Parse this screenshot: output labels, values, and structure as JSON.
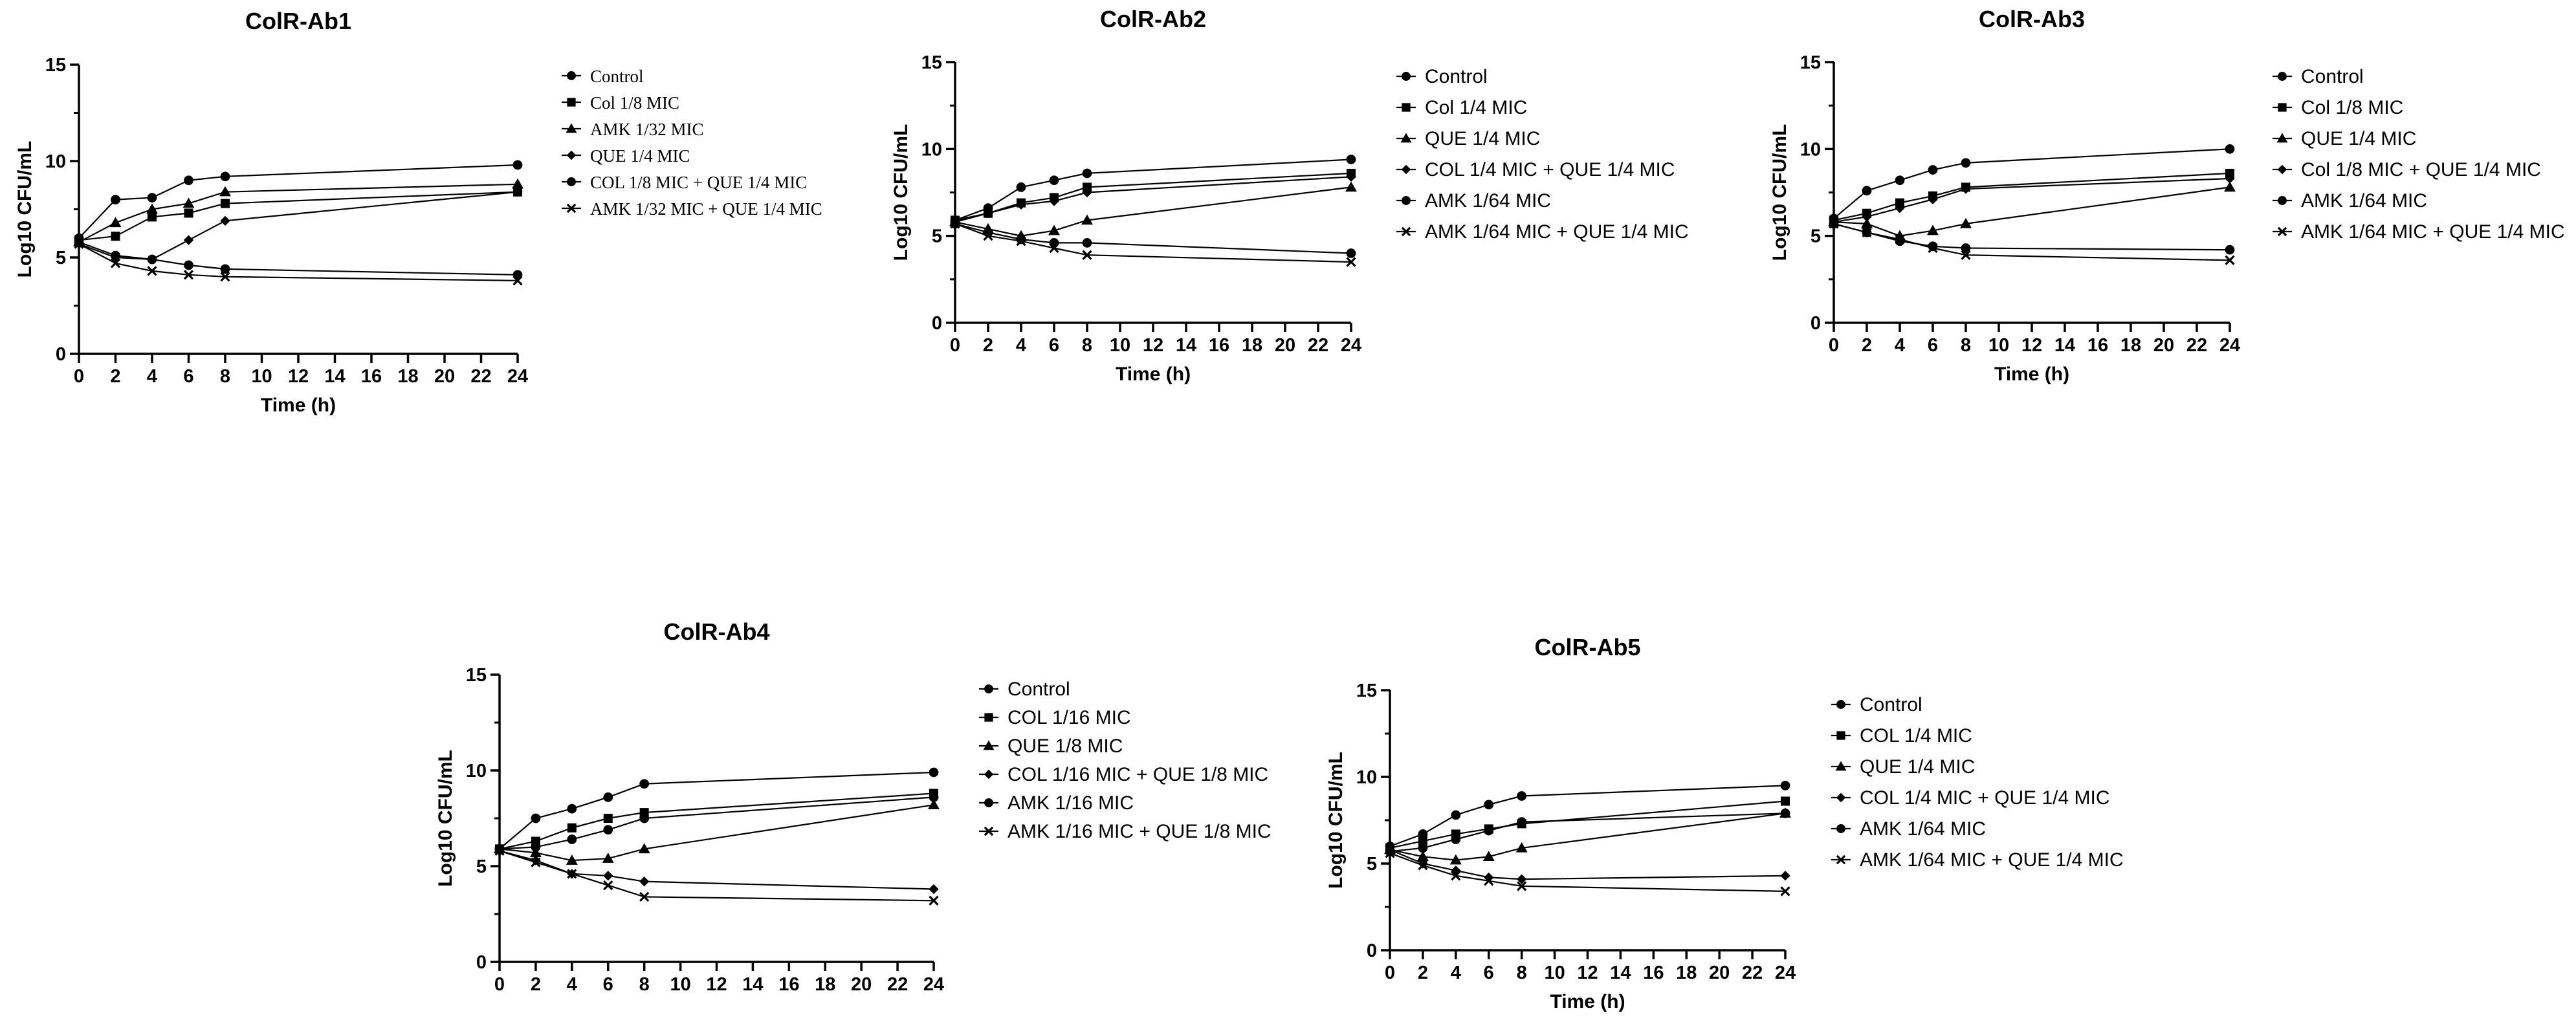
{
  "chart_data": [
    {
      "type": "line",
      "title": "ColR-Ab1",
      "xlabel": "Time (h)",
      "ylabel": "Log10 CFU/mL",
      "xlim": [
        0,
        24
      ],
      "ylim": [
        0,
        15
      ],
      "xticks": [
        "0",
        "2",
        "4",
        "6",
        "8",
        "10",
        "12",
        "14",
        "16",
        "18",
        "20",
        "22",
        "24"
      ],
      "yticks": [
        "0",
        "5",
        "10",
        "15"
      ],
      "x": [
        0,
        2,
        4,
        6,
        8,
        24
      ],
      "legend_position": "right",
      "series": [
        {
          "name": "Control",
          "marker": "circle",
          "values": [
            6.0,
            8.0,
            8.1,
            9.0,
            9.2,
            9.8
          ]
        },
        {
          "name": "Col 1/8 MIC",
          "marker": "square",
          "values": [
            5.9,
            6.1,
            7.1,
            7.3,
            7.8,
            8.4
          ]
        },
        {
          "name": "AMK 1/32 MIC",
          "marker": "triangle",
          "values": [
            5.8,
            6.8,
            7.5,
            7.8,
            8.4,
            8.8
          ]
        },
        {
          "name": "QUE 1/4 MIC",
          "marker": "diamond",
          "values": [
            5.7,
            5.0,
            4.9,
            5.9,
            6.9,
            8.4
          ]
        },
        {
          "name": "COL 1/8 MIC + QUE 1/4 MIC",
          "marker": "circle",
          "values": [
            5.8,
            5.1,
            4.9,
            4.6,
            4.4,
            4.1
          ]
        },
        {
          "name": "AMK 1/32 MIC + QUE 1/4 MIC",
          "marker": "cross",
          "values": [
            5.7,
            4.7,
            4.3,
            4.1,
            4.0,
            3.8
          ]
        }
      ]
    },
    {
      "type": "line",
      "title": "ColR-Ab2",
      "xlabel": "Time (h)",
      "ylabel": "Log10 CFU/mL",
      "xlim": [
        0,
        24
      ],
      "ylim": [
        0,
        15
      ],
      "xticks": [
        "0",
        "2",
        "4",
        "6",
        "8",
        "10",
        "12",
        "14",
        "16",
        "18",
        "20",
        "22",
        "24"
      ],
      "yticks": [
        "0",
        "5",
        "10",
        "15"
      ],
      "x": [
        0,
        2,
        4,
        6,
        8,
        24
      ],
      "legend_position": "right",
      "series": [
        {
          "name": "Control",
          "marker": "circle",
          "values": [
            5.9,
            6.6,
            7.8,
            8.2,
            8.6,
            9.4
          ]
        },
        {
          "name": "Col 1/4 MIC",
          "marker": "square",
          "values": [
            5.9,
            6.3,
            6.9,
            7.2,
            7.8,
            8.6
          ]
        },
        {
          "name": "QUE 1/4 MIC",
          "marker": "triangle",
          "values": [
            5.8,
            5.4,
            5.0,
            5.3,
            5.9,
            7.8
          ]
        },
        {
          "name": "COL 1/4 MIC + QUE 1/4 MIC",
          "marker": "diamond",
          "values": [
            5.8,
            6.3,
            6.8,
            7.0,
            7.5,
            8.4
          ]
        },
        {
          "name": "AMK 1/64 MIC",
          "marker": "circle",
          "values": [
            5.7,
            5.2,
            4.8,
            4.6,
            4.6,
            4.0
          ]
        },
        {
          "name": "AMK 1/64 MIC + QUE 1/4 MIC",
          "marker": "cross",
          "values": [
            5.7,
            5.0,
            4.7,
            4.3,
            3.9,
            3.5
          ]
        }
      ]
    },
    {
      "type": "line",
      "title": "ColR-Ab3",
      "xlabel": "Time (h)",
      "ylabel": "Log10 CFU/mL",
      "xlim": [
        0,
        24
      ],
      "ylim": [
        0,
        15
      ],
      "xticks": [
        "0",
        "2",
        "4",
        "6",
        "8",
        "10",
        "12",
        "14",
        "16",
        "18",
        "20",
        "22",
        "24"
      ],
      "yticks": [
        "0",
        "5",
        "10",
        "15"
      ],
      "x": [
        0,
        2,
        4,
        6,
        8,
        24
      ],
      "legend_position": "right",
      "series": [
        {
          "name": "Control",
          "marker": "circle",
          "values": [
            6.0,
            7.6,
            8.2,
            8.8,
            9.2,
            10.0
          ]
        },
        {
          "name": "Col 1/8 MIC",
          "marker": "square",
          "values": [
            5.9,
            6.3,
            6.9,
            7.3,
            7.8,
            8.6
          ]
        },
        {
          "name": "QUE 1/4 MIC",
          "marker": "triangle",
          "values": [
            5.8,
            5.7,
            5.0,
            5.3,
            5.7,
            7.8
          ]
        },
        {
          "name": "Col 1/8 MIC + QUE 1/4 MIC",
          "marker": "diamond",
          "values": [
            5.8,
            6.1,
            6.6,
            7.1,
            7.7,
            8.3
          ]
        },
        {
          "name": "AMK 1/64 MIC",
          "marker": "circle",
          "values": [
            5.7,
            5.2,
            4.7,
            4.4,
            4.3,
            4.2
          ]
        },
        {
          "name": "AMK 1/64 MIC + QUE 1/4 MIC",
          "marker": "cross",
          "values": [
            5.7,
            5.2,
            4.8,
            4.3,
            3.9,
            3.6
          ]
        }
      ]
    },
    {
      "type": "line",
      "title": "ColR-Ab4",
      "xlabel": "",
      "ylabel": "Log10 CFU/mL",
      "xlim": [
        0,
        24
      ],
      "ylim": [
        0,
        15
      ],
      "xticks": [
        "0",
        "2",
        "4",
        "6",
        "8",
        "10",
        "12",
        "14",
        "16",
        "18",
        "20",
        "22",
        "24"
      ],
      "yticks": [
        "0",
        "5",
        "10",
        "15"
      ],
      "x": [
        0,
        2,
        4,
        6,
        8,
        24
      ],
      "legend_position": "right",
      "series": [
        {
          "name": "Control",
          "marker": "circle",
          "values": [
            5.9,
            7.5,
            8.0,
            8.6,
            9.3,
            9.9
          ]
        },
        {
          "name": "COL 1/16 MIC",
          "marker": "square",
          "values": [
            5.9,
            6.3,
            7.0,
            7.5,
            7.8,
            8.8
          ]
        },
        {
          "name": "QUE 1/8 MIC",
          "marker": "triangle",
          "values": [
            5.9,
            5.7,
            5.3,
            5.4,
            5.9,
            8.2
          ]
        },
        {
          "name": "COL 1/16 MIC + QUE 1/8 MIC",
          "marker": "diamond",
          "values": [
            5.8,
            5.3,
            4.6,
            4.5,
            4.2,
            3.8
          ]
        },
        {
          "name": "AMK 1/16 MIC",
          "marker": "circle",
          "values": [
            5.9,
            6.0,
            6.4,
            6.9,
            7.5,
            8.6
          ]
        },
        {
          "name": "AMK 1/16 MIC + QUE 1/8 MIC",
          "marker": "cross",
          "values": [
            5.8,
            5.2,
            4.6,
            4.0,
            3.4,
            3.2
          ]
        }
      ]
    },
    {
      "type": "line",
      "title": "ColR-Ab5",
      "xlabel": "Time (h)",
      "ylabel": "Log10 CFU/mL",
      "xlim": [
        0,
        24
      ],
      "ylim": [
        0,
        15
      ],
      "xticks": [
        "0",
        "2",
        "4",
        "6",
        "8",
        "10",
        "12",
        "14",
        "16",
        "18",
        "20",
        "22",
        "24"
      ],
      "yticks": [
        "0",
        "5",
        "10",
        "15"
      ],
      "x": [
        0,
        2,
        4,
        6,
        8,
        24
      ],
      "legend_position": "right",
      "series": [
        {
          "name": "Control",
          "marker": "circle",
          "values": [
            6.0,
            6.7,
            7.8,
            8.4,
            8.9,
            9.5
          ]
        },
        {
          "name": "COL 1/4 MIC",
          "marker": "square",
          "values": [
            5.9,
            6.3,
            6.7,
            7.0,
            7.3,
            8.6
          ]
        },
        {
          "name": "QUE 1/4 MIC",
          "marker": "triangle",
          "values": [
            5.8,
            5.4,
            5.2,
            5.4,
            5.9,
            7.9
          ]
        },
        {
          "name": "COL 1/4 MIC + QUE 1/4 MIC",
          "marker": "diamond",
          "values": [
            5.8,
            5.0,
            4.6,
            4.2,
            4.1,
            4.3
          ]
        },
        {
          "name": "AMK 1/64 MIC",
          "marker": "circle",
          "values": [
            5.7,
            5.9,
            6.4,
            6.9,
            7.4,
            7.9
          ]
        },
        {
          "name": "AMK 1/64 MIC + QUE 1/4 MIC",
          "marker": "cross",
          "values": [
            5.6,
            4.9,
            4.3,
            4.0,
            3.7,
            3.4
          ]
        }
      ]
    }
  ]
}
